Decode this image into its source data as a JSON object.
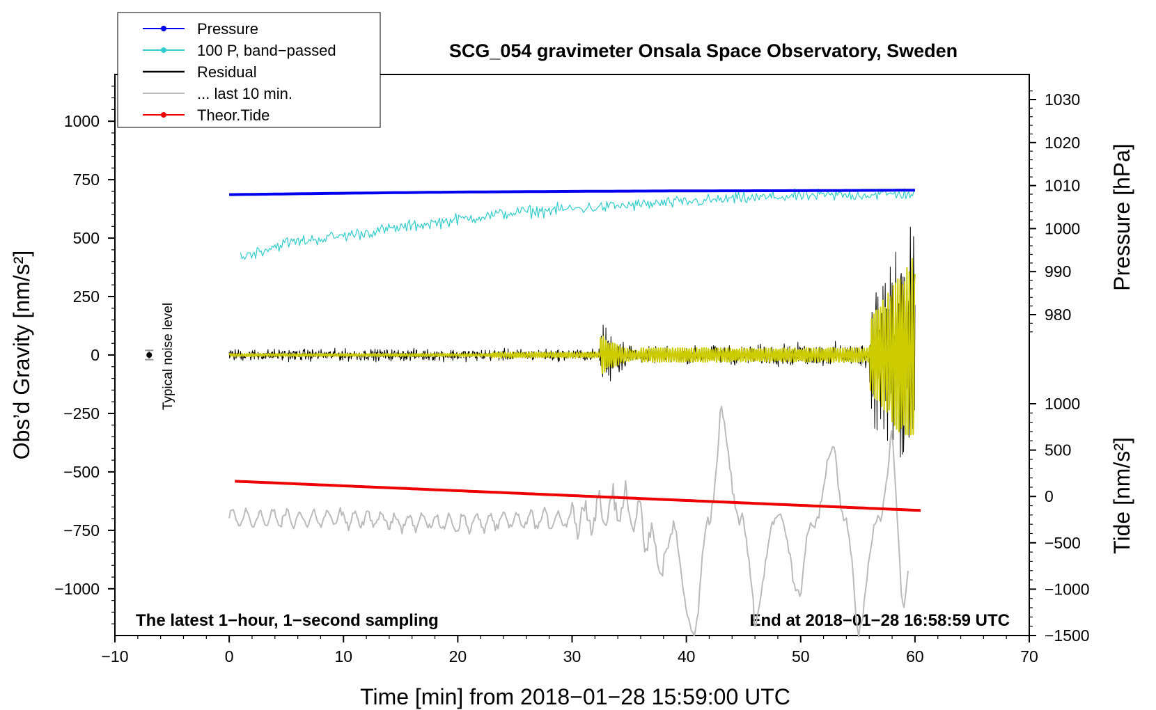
{
  "chart_data": {
    "type": "line",
    "title": "SCG_054 gravimeter Onsala Space Observatory, Sweden",
    "xlabel": "Time [min] from 2018−01−28 15:59:00 UTC",
    "ylabel": "Obs’d Gravity [nm/s²]",
    "ylabel_right_top": "Pressure [hPa]",
    "ylabel_right_bottom": "Tide [nm/s²]",
    "xlim": [
      -10,
      70
    ],
    "ylim": [
      -1200,
      1200
    ],
    "pressure_ylim": [
      975,
      1033
    ],
    "tide_ylim": [
      -1500,
      1000
    ],
    "x_ticks": [
      -10,
      0,
      10,
      20,
      30,
      40,
      50,
      60,
      70
    ],
    "x_tick_labels": [
      "−10",
      "0",
      "10",
      "20",
      "30",
      "40",
      "50",
      "60",
      "70"
    ],
    "y_ticks": [
      1000,
      750,
      500,
      250,
      0,
      -250,
      -500,
      -750,
      -1000
    ],
    "y_tick_labels": [
      "1000",
      "750",
      "500",
      "250",
      "0",
      "−250",
      "−500",
      "−750",
      "−1000"
    ],
    "pressure_ticks": [
      1030,
      1020,
      1010,
      1000,
      990,
      980
    ],
    "pressure_tick_labels": [
      "1030",
      "1020",
      "1010",
      "1000",
      "990",
      "980"
    ],
    "tide_ticks": [
      1000,
      500,
      0,
      -500,
      -1000,
      -1500
    ],
    "tide_tick_labels": [
      "1000",
      "500",
      "0",
      "−500",
      "−1000",
      "−1500"
    ],
    "annotation_left": "The latest 1−hour, 1−second sampling",
    "annotation_right": "End at 2018−01−28 16:58:59 UTC",
    "noise_label": "Typical noise level",
    "noise_marker": {
      "x": -7,
      "y": 0,
      "err": 20
    },
    "legend": [
      {
        "label": "Pressure",
        "color": "#0000ee",
        "marker": true,
        "style": "solid"
      },
      {
        "label": "100 P, band−passed",
        "color": "#33cccc",
        "marker": true,
        "style": "solid"
      },
      {
        "label": "Residual",
        "color": "#000000",
        "marker": false,
        "style": "solid"
      },
      {
        "label": "... last 10 min.",
        "color": "#bbbbbb",
        "marker": false,
        "style": "solid"
      },
      {
        "label": "Theor.Tide",
        "color": "#ee0000",
        "marker": true,
        "style": "solid"
      }
    ],
    "series": [
      {
        "name": "Pressure",
        "axis": "gravity",
        "color": "#0000ee",
        "x": [
          0,
          10,
          20,
          30,
          40,
          50,
          60
        ],
        "y": [
          686,
          692,
          697,
          700,
          702,
          703,
          705
        ]
      },
      {
        "name": "100 P, band−passed",
        "axis": "gravity",
        "color": "#33cccc",
        "x": [
          1,
          5,
          10,
          15,
          20,
          25,
          30,
          35,
          40,
          45,
          50,
          55,
          60
        ],
        "y": [
          420,
          480,
          510,
          545,
          580,
          610,
          625,
          640,
          655,
          670,
          680,
          685,
          690
        ]
      },
      {
        "name": "Residual",
        "axis": "gravity",
        "color": "#000000",
        "x": [
          0,
          10,
          20,
          30,
          33,
          34,
          36,
          40,
          45,
          50,
          55,
          57,
          58,
          59,
          60
        ],
        "y": [
          0,
          0,
          0,
          0,
          230,
          -280,
          0,
          0,
          0,
          0,
          0,
          550,
          -450,
          480,
          570
        ]
      },
      {
        "name": "Residual (filtered)",
        "axis": "gravity",
        "color": "#cccc00",
        "x": [
          0,
          20,
          30,
          33,
          36,
          40,
          50,
          56,
          57,
          58,
          59,
          60
        ],
        "y": [
          0,
          0,
          0,
          100,
          0,
          0,
          0,
          0,
          430,
          -340,
          350,
          -120
        ]
      },
      {
        "name": "... last 10 min.",
        "axis": "gravity",
        "color": "#bbbbbb",
        "x": [
          0,
          10,
          20,
          30,
          35,
          38,
          41,
          43,
          46,
          48,
          50,
          53,
          55,
          58,
          59
        ],
        "y": [
          -700,
          -700,
          -720,
          -700,
          -640,
          -900,
          -1240,
          -190,
          -1180,
          -620,
          -1100,
          -300,
          -1250,
          -300,
          -1200
        ]
      },
      {
        "name": "Theor.Tide",
        "axis": "gravity",
        "color": "#ee0000",
        "x": [
          0.5,
          60.5
        ],
        "y": [
          -540,
          -665
        ]
      }
    ]
  }
}
